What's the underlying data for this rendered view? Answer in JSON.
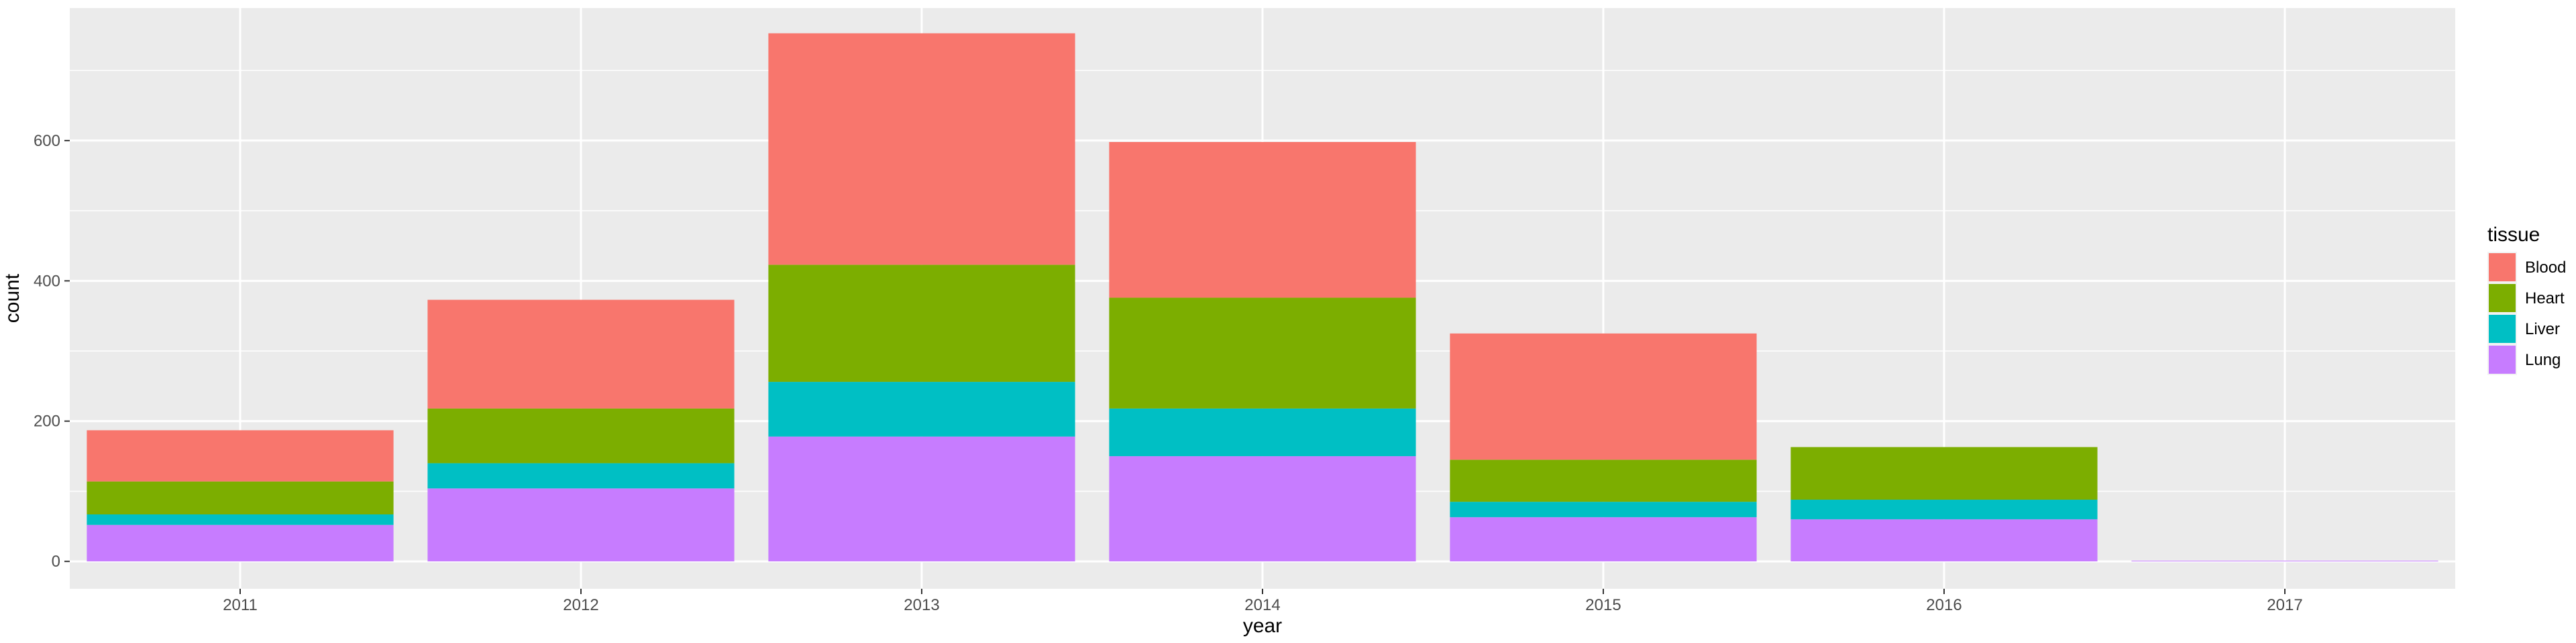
{
  "chart_data": {
    "type": "bar",
    "stacked": true,
    "xlabel": "year",
    "ylabel": "count",
    "categories": [
      "2011",
      "2012",
      "2013",
      "2014",
      "2015",
      "2016",
      "2017"
    ],
    "series": [
      {
        "name": "Lung",
        "color": "#C77CFF",
        "values": [
          52,
          104,
          178,
          150,
          63,
          60,
          1
        ]
      },
      {
        "name": "Liver",
        "color": "#00BFC4",
        "values": [
          15,
          36,
          78,
          68,
          22,
          28,
          0
        ]
      },
      {
        "name": "Heart",
        "color": "#7CAE00",
        "values": [
          47,
          78,
          167,
          158,
          60,
          75,
          0
        ]
      },
      {
        "name": "Blood",
        "color": "#F8766D",
        "values": [
          73,
          155,
          330,
          222,
          180,
          0,
          0
        ]
      }
    ],
    "ylim": [
      -39,
      789
    ],
    "y_ticks": [
      0,
      200,
      400,
      600
    ],
    "grid": true,
    "legend": {
      "title": "tissue",
      "position": "right",
      "entries": [
        "Blood",
        "Heart",
        "Liver",
        "Lung"
      ]
    }
  }
}
